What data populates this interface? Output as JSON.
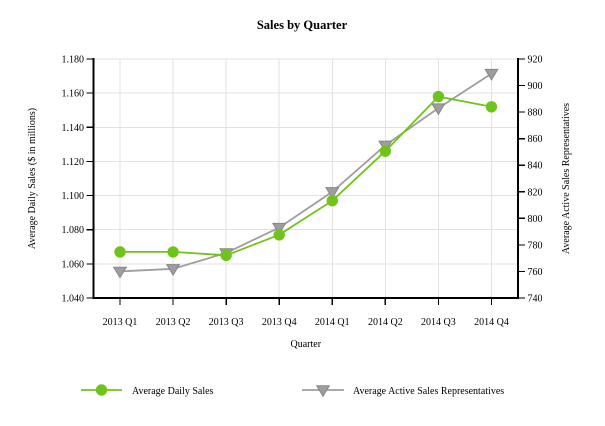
{
  "chart_data": {
    "type": "line",
    "title": "Sales by Quarter",
    "xlabel": "Quarter",
    "categories": [
      "2013 Q1",
      "2013 Q2",
      "2013 Q3",
      "2013 Q4",
      "2014 Q1",
      "2014 Q2",
      "2014 Q3",
      "2014 Q4"
    ],
    "left_axis": {
      "label": "Average Daily Sales ($ in millions)",
      "min": 1.04,
      "max": 1.18,
      "step": 0.02,
      "tick_labels": [
        "1.040",
        "1.060",
        "1.080",
        "1.100",
        "1.120",
        "1.140",
        "1.160",
        "1.180"
      ]
    },
    "right_axis": {
      "label": "Average Active Sales Representatives",
      "min": 740,
      "max": 920,
      "step": 20,
      "tick_labels": [
        "740",
        "760",
        "780",
        "800",
        "820",
        "840",
        "860",
        "880",
        "900",
        "920"
      ]
    },
    "series": [
      {
        "name": "Average Daily Sales",
        "axis": "left",
        "marker": "circle",
        "color": "#6fc41c",
        "values": [
          1.067,
          1.067,
          1.065,
          1.077,
          1.097,
          1.126,
          1.158,
          1.152
        ]
      },
      {
        "name": "Average Active Sales Representatives",
        "axis": "right",
        "marker": "triangle-down",
        "color": "#9e9e9e",
        "marker_edge": "#868686",
        "values": [
          760,
          762,
          774,
          793,
          820,
          855,
          883,
          909
        ]
      }
    ],
    "grid": true,
    "legend_position": "bottom",
    "colors": {
      "grid": "#e2e2e2",
      "axis": "#000000",
      "background": "#ffffff"
    }
  }
}
